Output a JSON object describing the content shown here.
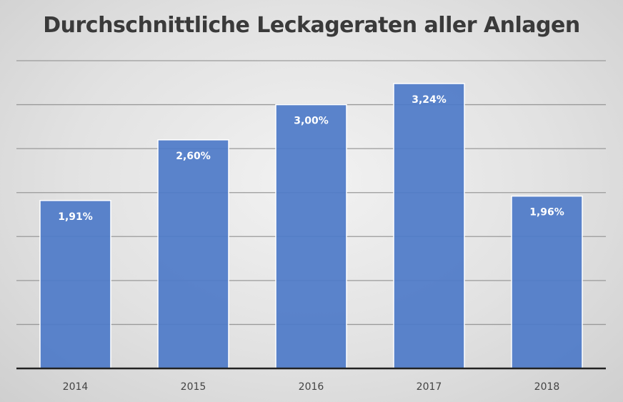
{
  "chart_data": {
    "type": "bar",
    "title": "Durchschnittliche Leckageraten aller Anlagen",
    "categories": [
      "2014",
      "2015",
      "2016",
      "2017",
      "2018"
    ],
    "values": [
      1.91,
      2.6,
      3.0,
      3.24,
      1.96
    ],
    "data_labels": [
      "1,91%",
      "2,60%",
      "3,00%",
      "3,24%",
      "1,96%"
    ],
    "unit": "%",
    "xlabel": "",
    "ylabel": "",
    "ylim": [
      0,
      3.5
    ],
    "grid_step": 0.5,
    "grid": true,
    "y_tick_labels_shown": false,
    "legend": "none",
    "colors": {
      "bar": "#4f7bc8",
      "bar_border": "#ffffff",
      "grid": "#9a9a9a",
      "axis": "#222222",
      "title": "#3a3a3a"
    }
  }
}
